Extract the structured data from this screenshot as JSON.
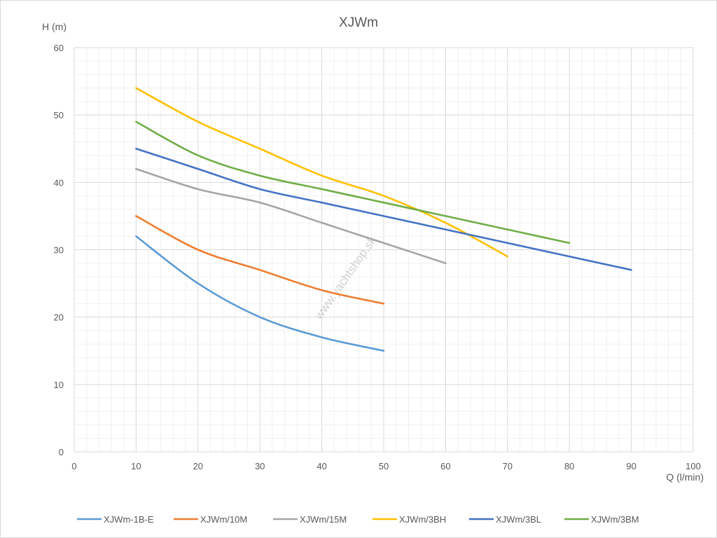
{
  "chart_data": {
    "type": "line",
    "title": "XJWm",
    "xlabel": "Q (l/min)",
    "ylabel": "H (m)",
    "xlim": [
      0,
      100
    ],
    "ylim": [
      0,
      60
    ],
    "xticks": [
      0,
      10,
      20,
      30,
      40,
      50,
      60,
      70,
      80,
      90,
      100
    ],
    "yticks": [
      0,
      10,
      20,
      30,
      40,
      50,
      60
    ],
    "grid": true,
    "minor_grid": true,
    "legend_position": "bottom",
    "watermark": "www.yachtshop.sk",
    "series": [
      {
        "name": "XJWm-1B-E",
        "color": "#5b9bd5",
        "x": [
          10,
          20,
          30,
          40,
          50
        ],
        "y": [
          32,
          25,
          20,
          17,
          15
        ]
      },
      {
        "name": "XJWm/10M",
        "color": "#ed7d31",
        "x": [
          10,
          20,
          30,
          40,
          50
        ],
        "y": [
          35,
          30,
          27,
          24,
          22
        ]
      },
      {
        "name": "XJWm/15M",
        "color": "#a5a5a5",
        "x": [
          10,
          20,
          30,
          40,
          50,
          60
        ],
        "y": [
          42,
          39,
          37,
          34,
          31,
          28
        ]
      },
      {
        "name": "XJWm/3BH",
        "color": "#ffc000",
        "x": [
          10,
          20,
          30,
          40,
          50,
          60,
          70
        ],
        "y": [
          54,
          49,
          45,
          41,
          38,
          34,
          29
        ]
      },
      {
        "name": "XJWm/3BL",
        "color": "#4472c4",
        "x": [
          10,
          20,
          30,
          40,
          50,
          60,
          70,
          80,
          90
        ],
        "y": [
          45,
          42,
          39,
          37,
          35,
          33,
          31,
          29,
          27
        ]
      },
      {
        "name": "XJWm/3BM",
        "color": "#70ad47",
        "x": [
          10,
          20,
          30,
          40,
          50,
          60,
          70,
          80
        ],
        "y": [
          49,
          44,
          41,
          39,
          37,
          35,
          33,
          31
        ]
      }
    ]
  }
}
